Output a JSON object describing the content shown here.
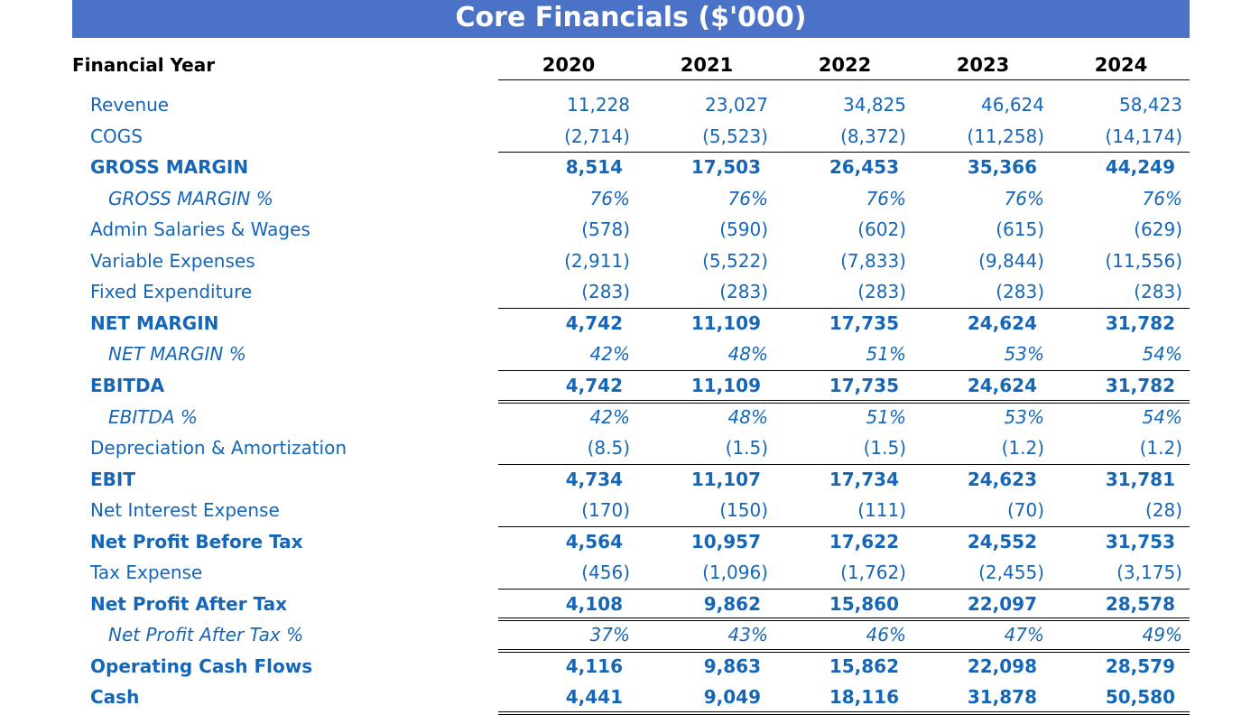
{
  "title": "Core Financials ($'000)",
  "header": {
    "label": "Financial Year",
    "years": [
      "2020",
      "2021",
      "2022",
      "2023",
      "2024"
    ]
  },
  "rows": [
    {
      "label": "Revenue",
      "style": "normal",
      "values": [
        "11,228",
        "23,027",
        "34,825",
        "46,624",
        "58,423"
      ]
    },
    {
      "label": "COGS",
      "style": "normal",
      "values": [
        "(2,714)",
        "(5,523)",
        "(8,372)",
        "(11,258)",
        "(14,174)"
      ]
    },
    {
      "label": "GROSS MARGIN",
      "style": "bold",
      "values": [
        "8,514",
        "17,503",
        "26,453",
        "35,366",
        "44,249"
      ]
    },
    {
      "label": "GROSS MARGIN %",
      "style": "italic",
      "values": [
        "76%",
        "76%",
        "76%",
        "76%",
        "76%"
      ]
    },
    {
      "label": "Admin Salaries & Wages",
      "style": "normal",
      "values": [
        "(578)",
        "(590)",
        "(602)",
        "(615)",
        "(629)"
      ]
    },
    {
      "label": "Variable Expenses",
      "style": "normal",
      "values": [
        "(2,911)",
        "(5,522)",
        "(7,833)",
        "(9,844)",
        "(11,556)"
      ]
    },
    {
      "label": "Fixed Expenditure",
      "style": "normal",
      "values": [
        "(283)",
        "(283)",
        "(283)",
        "(283)",
        "(283)"
      ]
    },
    {
      "label": "NET MARGIN",
      "style": "bold",
      "values": [
        "4,742",
        "11,109",
        "17,735",
        "24,624",
        "31,782"
      ]
    },
    {
      "label": "NET MARGIN %",
      "style": "italic",
      "values": [
        "42%",
        "48%",
        "51%",
        "53%",
        "54%"
      ]
    },
    {
      "label": "EBITDA",
      "style": "bold",
      "values": [
        "4,742",
        "11,109",
        "17,735",
        "24,624",
        "31,782"
      ]
    },
    {
      "label": "EBITDA %",
      "style": "italic",
      "values": [
        "42%",
        "48%",
        "51%",
        "53%",
        "54%"
      ]
    },
    {
      "label": "Depreciation & Amortization",
      "style": "normal",
      "values": [
        "(8.5)",
        "(1.5)",
        "(1.5)",
        "(1.2)",
        "(1.2)"
      ]
    },
    {
      "label": "EBIT",
      "style": "bold",
      "values": [
        "4,734",
        "11,107",
        "17,734",
        "24,623",
        "31,781"
      ]
    },
    {
      "label": "Net Interest Expense",
      "style": "normal",
      "values": [
        "(170)",
        "(150)",
        "(111)",
        "(70)",
        "(28)"
      ]
    },
    {
      "label": "Net Profit Before Tax",
      "style": "bold",
      "values": [
        "4,564",
        "10,957",
        "17,622",
        "24,552",
        "31,753"
      ]
    },
    {
      "label": "Tax Expense",
      "style": "normal",
      "values": [
        "(456)",
        "(1,096)",
        "(1,762)",
        "(2,455)",
        "(3,175)"
      ]
    },
    {
      "label": "Net Profit After Tax",
      "style": "bold",
      "values": [
        "4,108",
        "9,862",
        "15,860",
        "22,097",
        "28,578"
      ]
    },
    {
      "label": "Net Profit After Tax %",
      "style": "italic",
      "values": [
        "37%",
        "43%",
        "46%",
        "47%",
        "49%"
      ]
    },
    {
      "label": "Operating Cash Flows",
      "style": "bold",
      "values": [
        "4,116",
        "9,863",
        "15,862",
        "22,098",
        "28,579"
      ]
    },
    {
      "label": "Cash",
      "style": "bold",
      "values": [
        "4,441",
        "9,049",
        "18,116",
        "31,878",
        "50,580"
      ]
    }
  ]
}
